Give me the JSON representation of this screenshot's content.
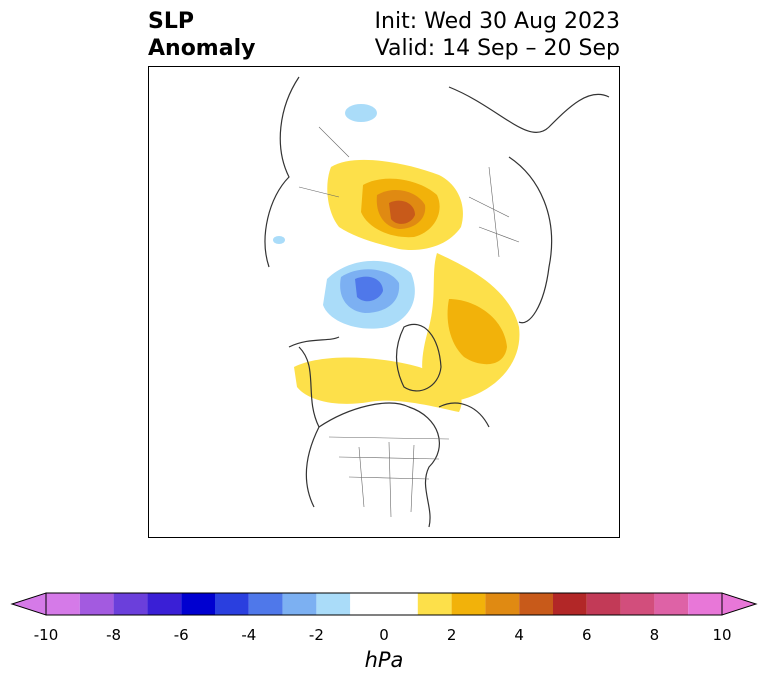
{
  "title": {
    "left": "SLP\nAnomaly",
    "left_line1": "SLP",
    "left_line2": "Anomaly",
    "right_line1": "Init: Wed 30 Aug 2023",
    "right_line2": "Valid: 14 Sep – 20 Sep"
  },
  "map": {
    "projection": "polar-stereographic-north",
    "variable": "sea-level-pressure-anomaly"
  },
  "colorbar": {
    "unit": "hPa",
    "min": -10,
    "max": 10,
    "ticks": [
      "-10",
      "-8",
      "-6",
      "-4",
      "-2",
      "0",
      "2",
      "4",
      "6",
      "8",
      "10"
    ],
    "bins": [
      {
        "from": -10,
        "to": -9,
        "color": "#d57ae8"
      },
      {
        "from": -9,
        "to": -8,
        "color": "#a35ae0"
      },
      {
        "from": -8,
        "to": -7,
        "color": "#6b3fdb"
      },
      {
        "from": -7,
        "to": -6,
        "color": "#3a1fd6"
      },
      {
        "from": -6,
        "to": -5,
        "color": "#0000d0"
      },
      {
        "from": -5,
        "to": -4,
        "color": "#2a3fdf"
      },
      {
        "from": -4,
        "to": -3,
        "color": "#4f78ea"
      },
      {
        "from": -3,
        "to": -2,
        "color": "#7cb0f2"
      },
      {
        "from": -2,
        "to": -1,
        "color": "#aadcf9"
      },
      {
        "from": -1,
        "to": 1,
        "color": "#ffffff"
      },
      {
        "from": 1,
        "to": 2,
        "color": "#fde04a"
      },
      {
        "from": 2,
        "to": 3,
        "color": "#f2b20a"
      },
      {
        "from": 3,
        "to": 4,
        "color": "#e08a12"
      },
      {
        "from": 4,
        "to": 5,
        "color": "#c85a1a"
      },
      {
        "from": 5,
        "to": 6,
        "color": "#b22727"
      },
      {
        "from": 6,
        "to": 7,
        "color": "#c23a57"
      },
      {
        "from": 7,
        "to": 8,
        "color": "#d24e7c"
      },
      {
        "from": 8,
        "to": 9,
        "color": "#de62a6"
      },
      {
        "from": 9,
        "to": 10,
        "color": "#e877d8"
      }
    ]
  }
}
